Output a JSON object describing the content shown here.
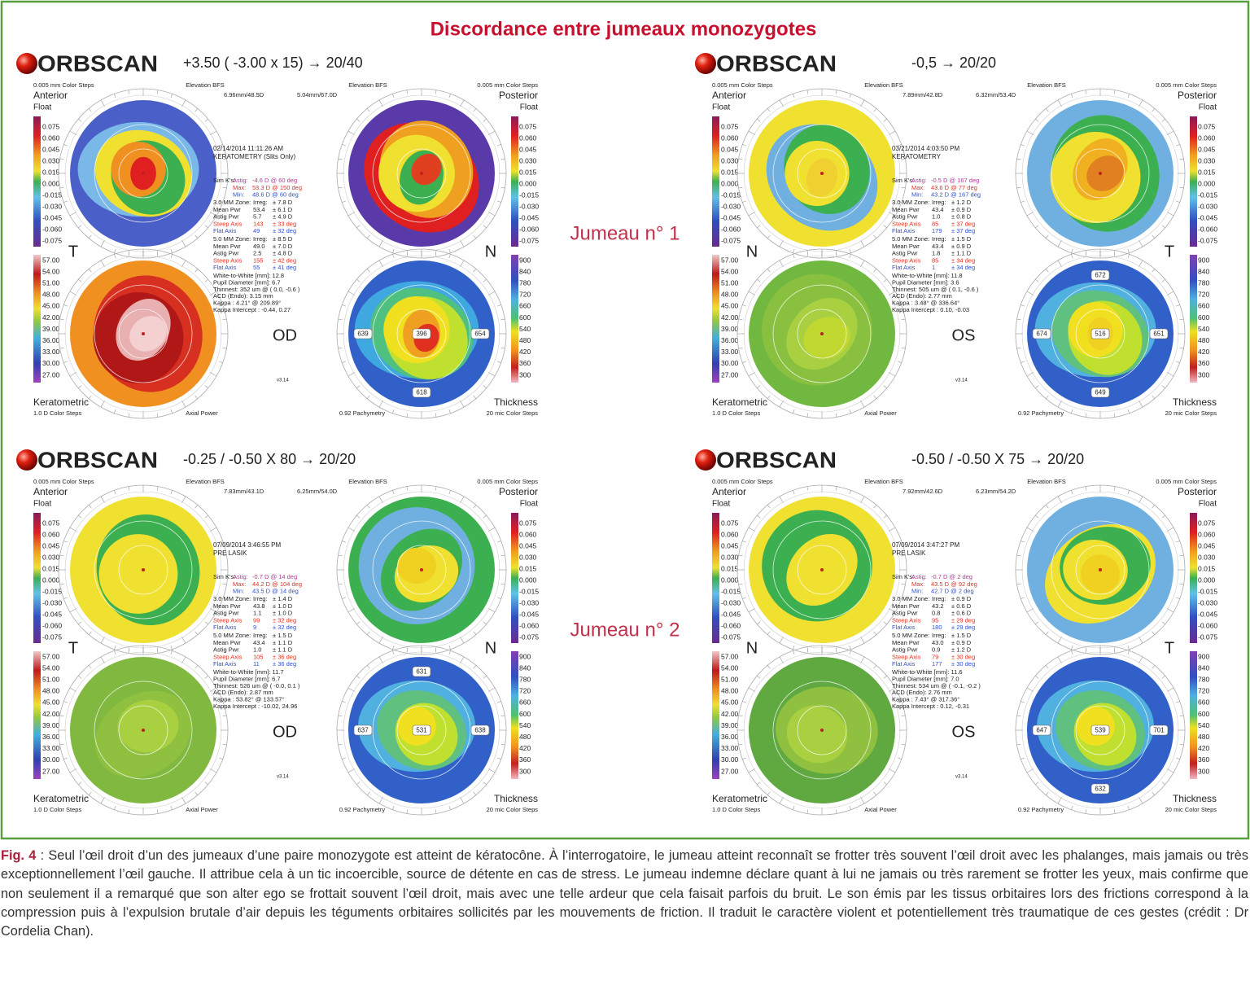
{
  "title": "Discordance entre jumeaux monozygotes",
  "brand": "ORBSCAN",
  "twin_labels": [
    "Jumeau n° 1",
    "Jumeau n° 2"
  ],
  "static_labels": {
    "color_steps": "0.005 mm Color Steps",
    "elevation_bfs": "Elevation BFS",
    "anterior": "Anterior",
    "posterior": "Posterior",
    "float": "Float",
    "keratometric": "Keratometric",
    "d_steps": "1.0 D Color Steps",
    "axial": "Axial Power",
    "pachymetry": "0.92 Pachymetry",
    "thickness": "Thickness",
    "mic_steps": "20 mic Color Steps",
    "version": "v3.14"
  },
  "scales": {
    "elevation": [
      "0.075",
      "0.060",
      "0.045",
      "0.030",
      "0.015",
      "0.000",
      "-0.015",
      "-0.030",
      "-0.045",
      "-0.060",
      "-0.075"
    ],
    "keratometric": [
      "57.00",
      "54.00",
      "51.00",
      "48.00",
      "45.00",
      "42.00",
      "39.00",
      "36.00",
      "33.00",
      "30.00",
      "27.00"
    ],
    "thickness": [
      "900",
      "840",
      "780",
      "720",
      "660",
      "600",
      "540",
      "480",
      "420",
      "360",
      "300"
    ]
  },
  "panels": [
    {
      "refraction": "+3.50 ( -3.00 x 15) → 20/40",
      "eye": "OD",
      "sides": [
        "T",
        "N"
      ],
      "radii": [
        "6.96mm/48.5D",
        "5.04mm/67.0D"
      ],
      "date": "02/14/2014 11:11:26 AM",
      "exam": "KERATOMETRY (Slits Only)",
      "simk": [
        [
          "Sim K's:",
          "Astig:",
          "-4.6 D @ 60 deg"
        ],
        [
          "Max:",
          "53.3 D @ 150 deg"
        ],
        [
          "Min:",
          "48.6 D @ 60 deg"
        ]
      ],
      "zone3": [
        [
          "3.0 MM Zone:",
          "Irreg:",
          "± 7.8 D"
        ],
        [
          "Mean Pwr",
          "53.4",
          "± 6.1 D"
        ],
        [
          "Astig Pwr",
          "5.7",
          "± 4.9 D"
        ],
        [
          "Steep Axis",
          "143",
          "± 33 deg"
        ],
        [
          "Flat Axis",
          "49",
          "± 32 deg"
        ]
      ],
      "zone5": [
        [
          "5.0 MM Zone:",
          "Irreg:",
          "± 8.5 D"
        ],
        [
          "Mean Pwr",
          "49.0",
          "± 7.0 D"
        ],
        [
          "Astig Pwr",
          "2.5",
          "± 4.8 D"
        ],
        [
          "Steep Axis",
          "155",
          "± 42 deg"
        ],
        [
          "Flat Axis",
          "55",
          "± 41 deg"
        ]
      ],
      "other": [
        "White-to-White [mm]: 12.8",
        "Pupil Diameter [mm]: 6.7",
        "Thinnest: 352 um @ ( 0.0, -0.6 )",
        "ACD (Endo): 3.15 mm",
        "Kappa : 4.21° @ 209.89°",
        "Kappa Intercept : -0.44, 0.27"
      ],
      "pachymetry": {
        "center": "396",
        "left": "639",
        "right": "654",
        "bottom": "618"
      }
    },
    {
      "refraction": "-0,5 → 20/20",
      "eye": "OS",
      "sides": [
        "N",
        "T"
      ],
      "radii": [
        "7.89mm/42.8D",
        "6.32mm/53.4D"
      ],
      "date": "03/21/2014 4:03:50 PM",
      "exam": "KERATOMETRY",
      "simk": [
        [
          "Sim K's:",
          "Astig:",
          "-0.5 D @ 167 deg"
        ],
        [
          "Max:",
          "43.6 D @ 77 deg"
        ],
        [
          "Min:",
          "43.2 D @ 167 deg"
        ]
      ],
      "zone3": [
        [
          "3.0 MM Zone:",
          "Irreg:",
          "± 1.2 D"
        ],
        [
          "Mean Pwr",
          "43.4",
          "± 0.9 D"
        ],
        [
          "Astig Pwr",
          "1.0",
          "± 0.8 D"
        ],
        [
          "Steep Axis",
          "85",
          "± 37 deg"
        ],
        [
          "Flat Axis",
          "179",
          "± 37 deg"
        ]
      ],
      "zone5": [
        [
          "5.0 MM Zone:",
          "Irreg:",
          "± 1.5 D"
        ],
        [
          "Mean Pwr",
          "43.4",
          "± 0.9 D"
        ],
        [
          "Astig Pwr",
          "1.8",
          "± 1.1 D"
        ],
        [
          "Steep Axis",
          "85",
          "± 34 deg"
        ],
        [
          "Flat Axis",
          "1",
          "± 34 deg"
        ]
      ],
      "other": [
        "White-to-White [mm]: 11.8",
        "Pupil Diameter [mm]: 3.6",
        "Thinnest: 505 um @ ( 0.1, -0.6 )",
        "ACD (Endo): 2.77 mm",
        "Kappa : 3.48° @ 336.64°",
        "Kappa Intercept : 0.10, -0.03"
      ],
      "pachymetry": {
        "top": "672",
        "center": "516",
        "left": "674",
        "right": "651",
        "bottom": "649"
      }
    },
    {
      "refraction": "-0.25 / -0.50 X 80 → 20/20",
      "eye": "OD",
      "sides": [
        "T",
        "N"
      ],
      "radii": [
        "7.83mm/43.1D",
        "6.25mm/54.0D"
      ],
      "date": "07/09/2014 3:46:55 PM",
      "exam": "PRE LASIK",
      "simk": [
        [
          "Sim K's:",
          "Astig:",
          "-0.7 D @ 14 deg"
        ],
        [
          "Max:",
          "44.2 D @ 104 deg"
        ],
        [
          "Min:",
          "43.5 D @ 14 deg"
        ]
      ],
      "zone3": [
        [
          "3.0 MM Zone:",
          "Irreg:",
          "± 1.4 D"
        ],
        [
          "Mean Pwr",
          "43.8",
          "± 1.0 D"
        ],
        [
          "Astig Pwr",
          "1.1",
          "± 1.0 D"
        ],
        [
          "Steep Axis",
          "99",
          "± 32 deg"
        ],
        [
          "Flat Axis",
          "9",
          "± 32 deg"
        ]
      ],
      "zone5": [
        [
          "5.0 MM Zone:",
          "Irreg:",
          "± 1.5 D"
        ],
        [
          "Mean Pwr",
          "43.4",
          "± 1.1 D"
        ],
        [
          "Astig Pwr",
          "1.0",
          "± 1.1 D"
        ],
        [
          "Steep Axis",
          "105",
          "± 36 deg"
        ],
        [
          "Flat Axis",
          "11",
          "± 36 deg"
        ]
      ],
      "other": [
        "White-to-White [mm]: 11.7",
        "Pupil Diameter [mm]: 6.7",
        "Thinnest: 526 um @ ( -0.0, 0.1 )",
        "ACD (Endo): 2.87 mm",
        "Kappa : 53.82° @ 133.57°",
        "Kappa Intercept : -10.02, 24.96"
      ],
      "pachymetry": {
        "top": "631",
        "center": "531",
        "left": "637",
        "right": "638"
      }
    },
    {
      "refraction": "-0.50 / -0.50 X 75 → 20/20",
      "eye": "OS",
      "sides": [
        "N",
        "T"
      ],
      "radii": [
        "7.92mm/42.6D",
        "6.23mm/54.2D"
      ],
      "date": "07/09/2014 3:47:27 PM",
      "exam": "PRE LASIK",
      "simk": [
        [
          "Sim K's:",
          "Astig:",
          "-0.7 D @ 2 deg"
        ],
        [
          "Max:",
          "43.5 D @ 92 deg"
        ],
        [
          "Min:",
          "42.7 D @ 2 deg"
        ]
      ],
      "zone3": [
        [
          "3.0 MM Zone:",
          "Irreg:",
          "± 0.9 D"
        ],
        [
          "Mean Pwr",
          "43.2",
          "± 0.6 D"
        ],
        [
          "Astig Pwr",
          "0.8",
          "± 0.6 D"
        ],
        [
          "Steep Axis",
          "95",
          "± 29 deg"
        ],
        [
          "Flat Axis",
          "180",
          "± 29 deg"
        ]
      ],
      "zone5": [
        [
          "5.0 MM Zone:",
          "Irreg:",
          "± 1.5 D"
        ],
        [
          "Mean Pwr",
          "43.0",
          "± 0.9 D"
        ],
        [
          "Astig Pwr",
          "0.9",
          "± 1.2 D"
        ],
        [
          "Steep Axis",
          "79",
          "± 30 deg"
        ],
        [
          "Flat Axis",
          "177",
          "± 30 deg"
        ]
      ],
      "other": [
        "White-to-White [mm]: 11.6",
        "Pupil Diameter [mm]: 7.0",
        "Thinnest: 534 um @ ( -0.1, -0.2 )",
        "ACD (Endo): 2.76 mm",
        "Kappa : 7.43° @ 317.36°",
        "Kappa Intercept : 0.12, -0.31"
      ],
      "pachymetry": {
        "center": "539",
        "left": "647",
        "right": "701",
        "bottom": "632"
      }
    }
  ],
  "caption": {
    "label": "Fig. 4",
    "text": " : Seul l’œil droit d’un des jumeaux d’une paire monozygote est atteint de kératocône. À l’interrogatoire, le jumeau atteint reconnaît se frotter très souvent l’œil droit avec les phalanges, mais jamais ou très exceptionnellement l’œil gauche. Il attribue cela à un tic incoercible, source de détente en cas de stress. Le jumeau indemne déclare quant à lui ne jamais ou très rarement se frotter les yeux, mais confirme que non seulement il a remarqué que son alter ego se frottait souvent l’œil droit, mais avec une telle ardeur que cela faisait parfois du bruit. Le son émis par les tissus orbitaires lors des frictions correspond à la compression puis à l’expulsion brutale d’air depuis les téguments orbitaires sollicités par les mouvements de friction. Il traduit le caractère violent et potentiellement très traumatique de ces gestes (crédit : Dr Cordelia Chan)."
  }
}
